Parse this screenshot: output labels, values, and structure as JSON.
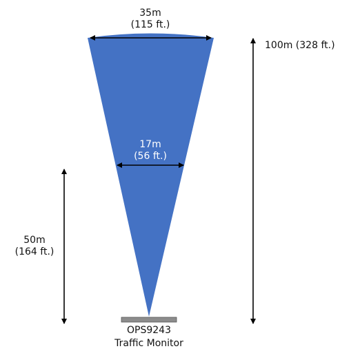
{
  "colors": {
    "beam": "#4472C4",
    "arrows": "#000000",
    "sensor": "#8C8C8C",
    "beam_text": "#ffffff"
  },
  "dimensions": {
    "top_width": {
      "line1": "35m",
      "line2": "(115 ft.)"
    },
    "mid_width": {
      "line1": "17m",
      "line2": "(56 ft.)"
    },
    "total_range": {
      "line1": "100m (328 ft.)"
    },
    "half_range": {
      "line1": "50m",
      "line2": "(164 ft.)"
    }
  },
  "sensor": {
    "model": "OPS9243",
    "name": "Traffic Monitor"
  }
}
